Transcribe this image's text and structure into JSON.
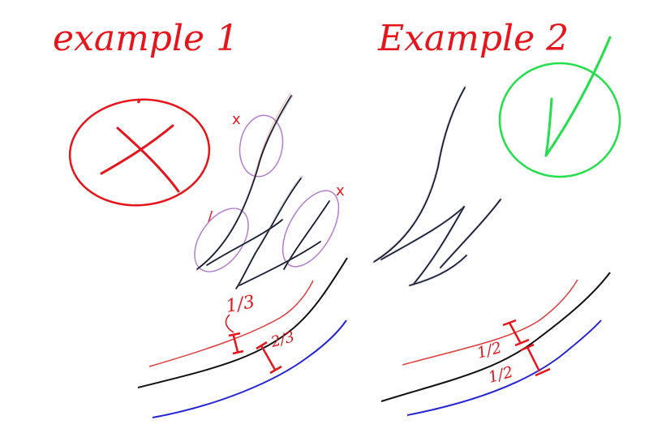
{
  "example1": {
    "title": "example 1",
    "verdict_icon": "cross-in-circle-icon",
    "ratio_top": "1/3",
    "ratio_bottom": "2/3",
    "mark_a": "x",
    "mark_b": "/",
    "mark_c": "x"
  },
  "example2": {
    "title": "Example 2",
    "verdict_icon": "checkmark-in-circle-icon",
    "ratio_top": "1/2",
    "ratio_bottom": "1/2"
  },
  "colors": {
    "annotation_red": "#e8141b",
    "check_green": "#22e04a",
    "guide_purple": "#b57cd0",
    "offset_blue": "#2424d8",
    "offset_red": "#e23b3b",
    "stroke_black": "#111111"
  }
}
